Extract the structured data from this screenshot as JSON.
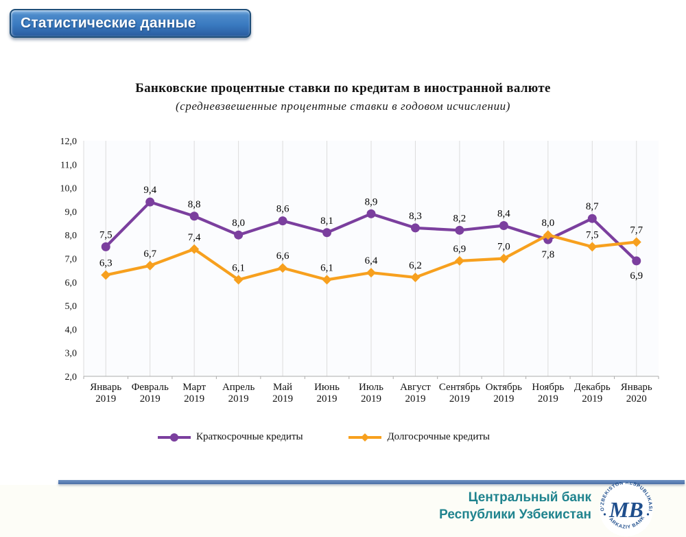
{
  "header_badge": {
    "label": "Статистические данные",
    "bg_top": "#4c8aca",
    "bg_bottom": "#2d63a7",
    "border_color": "#1e4e79",
    "text_color": "#ffffff"
  },
  "chart": {
    "title": "Банковские процентные ставки по кредитам в иностранной валюте",
    "subtitle": "(средневзвешенные процентные ставки в годовом исчислении)"
  },
  "chart_data": {
    "type": "line",
    "categories": [
      {
        "month": "Январь",
        "year": "2019"
      },
      {
        "month": "Февраль",
        "year": "2019"
      },
      {
        "month": "Март",
        "year": "2019"
      },
      {
        "month": "Апрель",
        "year": "2019"
      },
      {
        "month": "Май",
        "year": "2019"
      },
      {
        "month": "Июнь",
        "year": "2019"
      },
      {
        "month": "Июль",
        "year": "2019"
      },
      {
        "month": "Август",
        "year": "2019"
      },
      {
        "month": "Сентябрь",
        "year": "2019"
      },
      {
        "month": "Октябрь",
        "year": "2019"
      },
      {
        "month": "Ноябрь",
        "year": "2019"
      },
      {
        "month": "Декабрь",
        "year": "2019"
      },
      {
        "month": "Январь",
        "year": "2020"
      }
    ],
    "series": [
      {
        "name": "Краткосрочные кредиты",
        "color": "#7b3f9e",
        "marker": "circle",
        "values": [
          7.5,
          9.4,
          8.8,
          8.0,
          8.6,
          8.1,
          8.9,
          8.3,
          8.2,
          8.4,
          7.8,
          8.7,
          6.9
        ],
        "labels_below_indices": [
          10,
          12
        ]
      },
      {
        "name": "Долгосрочные кредиты",
        "color": "#f7a01e",
        "marker": "diamond",
        "values": [
          6.3,
          6.7,
          7.4,
          6.1,
          6.6,
          6.1,
          6.4,
          6.2,
          6.9,
          7.0,
          8.0,
          7.5,
          7.7
        ],
        "labels_below_indices": []
      }
    ],
    "ylim": [
      2.0,
      12.0
    ],
    "ytick_step": 1.0,
    "ytick_labels": [
      "2,0",
      "3,0",
      "4,0",
      "5,0",
      "6,0",
      "7,0",
      "8,0",
      "9,0",
      "10,0",
      "11,0",
      "12,0"
    ],
    "decimal_separator": ",",
    "grid": "vertical-only",
    "legend_position": "bottom",
    "plot_bg": "#fbfcfe",
    "gridline_color": "#dcdcdc",
    "axis_color": "#ababab"
  },
  "footer": {
    "org_line1": "Центральный банк",
    "org_line2": "Республики Узбекистан",
    "text_color": "#1f838e",
    "logo": {
      "top_text": "O'ZBEKISTON RESPUBLIKASI",
      "bottom_text": "MARKAZIY BANKI",
      "monogram": "МВ",
      "color": "#1f4e8c"
    }
  }
}
